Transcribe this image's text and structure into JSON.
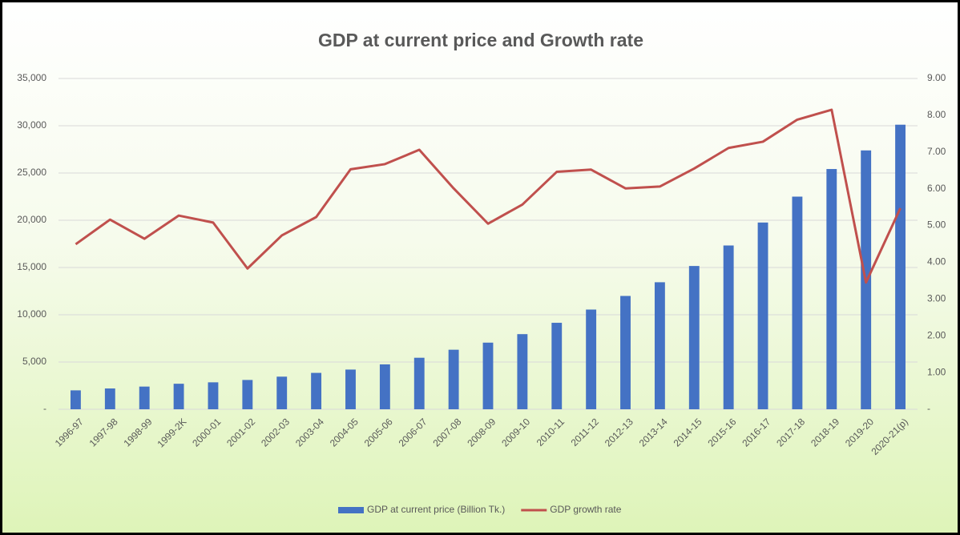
{
  "chart_data": {
    "type": "bar-line",
    "title": "GDP at current price and Growth rate",
    "categories": [
      "1996-97",
      "1997-98",
      "1998-99",
      "1999-2K",
      "2000-01",
      "2001-02",
      "2002-03",
      "2003-04",
      "2004-05",
      "2005-06",
      "2006-07",
      "2007-08",
      "2008-09",
      "2009-10",
      "2010-11",
      "2011-12",
      "2012-13",
      "2013-14",
      "2014-15",
      "2015-16",
      "2016-17",
      "2017-18",
      "2018-19",
      "2019-20",
      "2020-21(p)"
    ],
    "series": [
      {
        "name": "GDP at current price (Billion Tk.)",
        "type": "bar",
        "color": "#4472c4",
        "axis": "y",
        "values": [
          2000,
          2200,
          2400,
          2700,
          2850,
          3100,
          3450,
          3850,
          4200,
          4750,
          5450,
          6300,
          7050,
          7950,
          9150,
          10550,
          11990,
          13440,
          15160,
          17330,
          19760,
          22500,
          25420,
          27390,
          30110
        ]
      },
      {
        "name": "GDP growth rate",
        "type": "line",
        "color": "#c0504d",
        "axis": "y2",
        "values": [
          4.49,
          5.16,
          4.64,
          5.27,
          5.08,
          3.83,
          4.73,
          5.23,
          6.53,
          6.67,
          7.06,
          6.01,
          5.05,
          5.57,
          6.46,
          6.52,
          6.01,
          6.06,
          6.55,
          7.11,
          7.28,
          7.88,
          8.15,
          3.45,
          5.47
        ]
      }
    ],
    "ylim": [
      0,
      35000
    ],
    "yticks": [
      {
        "value": 0,
        "label": "-"
      },
      {
        "value": 5000,
        "label": "5,000"
      },
      {
        "value": 10000,
        "label": "10,000"
      },
      {
        "value": 15000,
        "label": "15,000"
      },
      {
        "value": 20000,
        "label": "20,000"
      },
      {
        "value": 25000,
        "label": "25,000"
      },
      {
        "value": 30000,
        "label": "30,000"
      },
      {
        "value": 35000,
        "label": "35,000"
      }
    ],
    "y2lim": [
      0,
      9
    ],
    "y2ticks": [
      {
        "value": 0,
        "label": "-"
      },
      {
        "value": 1,
        "label": "1.00"
      },
      {
        "value": 2,
        "label": "2.00"
      },
      {
        "value": 3,
        "label": "3.00"
      },
      {
        "value": 4,
        "label": "4.00"
      },
      {
        "value": 5,
        "label": "5.00"
      },
      {
        "value": 6,
        "label": "6.00"
      },
      {
        "value": 7,
        "label": "7.00"
      },
      {
        "value": 8,
        "label": "8.00"
      },
      {
        "value": 9,
        "label": "9.00"
      }
    ],
    "grid": true,
    "legend": "bottom"
  }
}
